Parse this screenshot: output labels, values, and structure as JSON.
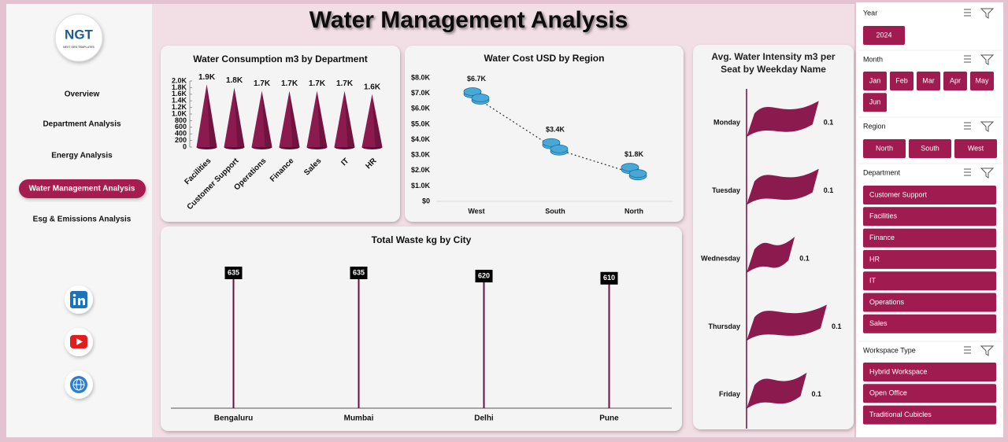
{
  "title": "Water Management Analysis",
  "logo": {
    "text": "NGT",
    "tagline": "NEXT GEN TEMPLATES"
  },
  "nav": [
    "Overview",
    "Department Analysis",
    "Energy Analysis",
    "Water Management Analysis",
    "Esg & Emissions Analysis"
  ],
  "chart_data": [
    {
      "type": "bar",
      "title": "Water Consumption m3 by Department",
      "color": "#8b1a4f",
      "categories": [
        "Facilities",
        "Customer Support",
        "Operations",
        "Finance",
        "Sales",
        "IT",
        "HR"
      ],
      "values": [
        1900,
        1800,
        1700,
        1700,
        1700,
        1700,
        1600
      ],
      "value_labels": [
        "1.9K",
        "1.8K",
        "1.7K",
        "1.7K",
        "1.7K",
        "1.7K",
        "1.6K"
      ],
      "ylim": [
        0,
        2000
      ],
      "yticks": [
        0,
        200,
        400,
        600,
        800,
        {
          "value": 1000,
          "label": "1.0K"
        },
        {
          "value": 1200,
          "label": "1.2K"
        },
        {
          "value": 1400,
          "label": "1.4K"
        },
        {
          "value": 1600,
          "label": "1.6K"
        },
        {
          "value": 1800,
          "label": "1.8K"
        },
        {
          "value": 2000,
          "label": "2.0K"
        }
      ]
    },
    {
      "type": "line",
      "title": "Water Cost USD by Region",
      "color": "#4aa8d8",
      "categories": [
        "West",
        "South",
        "North"
      ],
      "values": [
        6700,
        3400,
        1800
      ],
      "value_labels": [
        "$6.7K",
        "$3.4K",
        "$1.8K"
      ],
      "ylim": [
        0,
        8000
      ],
      "yticks": [
        {
          "value": 0,
          "label": "$0"
        },
        {
          "value": 1000,
          "label": "$1.0K"
        },
        {
          "value": 2000,
          "label": "$2.0K"
        },
        {
          "value": 3000,
          "label": "$3.0K"
        },
        {
          "value": 4000,
          "label": "$4.0K"
        },
        {
          "value": 5000,
          "label": "$5.0K"
        },
        {
          "value": 6000,
          "label": "$6.0K"
        },
        {
          "value": 7000,
          "label": "$7.0K"
        },
        {
          "value": 8000,
          "label": "$8.0K"
        }
      ]
    },
    {
      "type": "lollipop",
      "title": "Total Waste kg by City",
      "color": "#6b0f3f",
      "categories": [
        "Bengaluru",
        "Mumbai",
        "Delhi",
        "Pune"
      ],
      "values": [
        635,
        635,
        620,
        610
      ]
    },
    {
      "type": "hbar",
      "title": "Avg. Water Intensity m3 per Seat by Weekday Name",
      "color": "#8b1a4f",
      "categories": [
        "Monday",
        "Tuesday",
        "Wednesday",
        "Thursday",
        "Friday"
      ],
      "values": [
        0.09,
        0.09,
        0.06,
        0.1,
        0.075
      ],
      "value_labels": [
        "0.1",
        "0.1",
        "0.1",
        "0.1",
        "0.1"
      ]
    }
  ],
  "slicers": [
    {
      "title": "Year",
      "items": [
        "2024"
      ]
    },
    {
      "title": "Month",
      "items": [
        "Jan",
        "Feb",
        "Mar",
        "Apr",
        "May",
        "Jun"
      ]
    },
    {
      "title": "Region",
      "items": [
        "North",
        "South",
        "West"
      ]
    },
    {
      "title": "Department",
      "items": [
        "Customer Support",
        "Facilities",
        "Finance",
        "HR",
        "IT",
        "Operations",
        "Sales"
      ]
    },
    {
      "title": "Workspace Type",
      "items": [
        "Hybrid Workspace",
        "Open Office",
        "Traditional Cubicles"
      ]
    }
  ]
}
